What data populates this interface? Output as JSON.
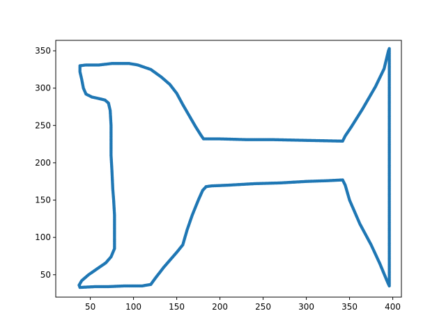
{
  "chart_data": {
    "type": "scatter",
    "title": "",
    "xlabel": "",
    "ylabel": "",
    "xlim": [
      10,
      410
    ],
    "ylim": [
      20,
      364
    ],
    "xticks": [
      50,
      100,
      150,
      200,
      250,
      300,
      350,
      400
    ],
    "yticks": [
      50,
      100,
      150,
      200,
      250,
      300,
      350
    ],
    "grid": false,
    "marker_color": "#1f77b4",
    "series": [
      {
        "vertices": [
          [
            38,
            330
          ],
          [
            45,
            331
          ],
          [
            60,
            331
          ],
          [
            75,
            333
          ],
          [
            95,
            333
          ],
          [
            105,
            331
          ],
          [
            120,
            325
          ],
          [
            132,
            315
          ],
          [
            142,
            305
          ],
          [
            150,
            293
          ],
          [
            157,
            278
          ],
          [
            165,
            262
          ],
          [
            172,
            248
          ],
          [
            178,
            237
          ],
          [
            181,
            232
          ],
          [
            200,
            232
          ],
          [
            230,
            231
          ],
          [
            260,
            231
          ],
          [
            300,
            230
          ],
          [
            342,
            229
          ],
          [
            345,
            236
          ],
          [
            352,
            248
          ],
          [
            365,
            272
          ],
          [
            380,
            302
          ],
          [
            390,
            326
          ],
          [
            395,
            350
          ],
          [
            396,
            353
          ],
          [
            396,
            300
          ],
          [
            396,
            250
          ],
          [
            396,
            200
          ],
          [
            396,
            150
          ],
          [
            396,
            100
          ],
          [
            396,
            50
          ],
          [
            396,
            35
          ],
          [
            394,
            40
          ],
          [
            385,
            65
          ],
          [
            375,
            90
          ],
          [
            362,
            118
          ],
          [
            350,
            150
          ],
          [
            345,
            170
          ],
          [
            342,
            177
          ],
          [
            325,
            176
          ],
          [
            300,
            175
          ],
          [
            270,
            173
          ],
          [
            240,
            172
          ],
          [
            210,
            170
          ],
          [
            190,
            169
          ],
          [
            184,
            168
          ],
          [
            180,
            163
          ],
          [
            175,
            150
          ],
          [
            168,
            130
          ],
          [
            162,
            110
          ],
          [
            157,
            90
          ],
          [
            150,
            80
          ],
          [
            135,
            60
          ],
          [
            125,
            45
          ],
          [
            120,
            37
          ],
          [
            110,
            35
          ],
          [
            90,
            35
          ],
          [
            70,
            34
          ],
          [
            55,
            34
          ],
          [
            38,
            33
          ],
          [
            37,
            36
          ],
          [
            40,
            42
          ],
          [
            48,
            50
          ],
          [
            58,
            58
          ],
          [
            68,
            66
          ],
          [
            74,
            74
          ],
          [
            78,
            85
          ],
          [
            78,
            110
          ],
          [
            78,
            130
          ],
          [
            77,
            150
          ],
          [
            76,
            165
          ],
          [
            75,
            190
          ],
          [
            74,
            210
          ],
          [
            74,
            230
          ],
          [
            74,
            250
          ],
          [
            73,
            270
          ],
          [
            71,
            280
          ],
          [
            67,
            284
          ],
          [
            60,
            286
          ],
          [
            52,
            288
          ],
          [
            45,
            292
          ],
          [
            42,
            300
          ],
          [
            40,
            312
          ],
          [
            38,
            322
          ],
          [
            38,
            330
          ]
        ]
      }
    ]
  }
}
